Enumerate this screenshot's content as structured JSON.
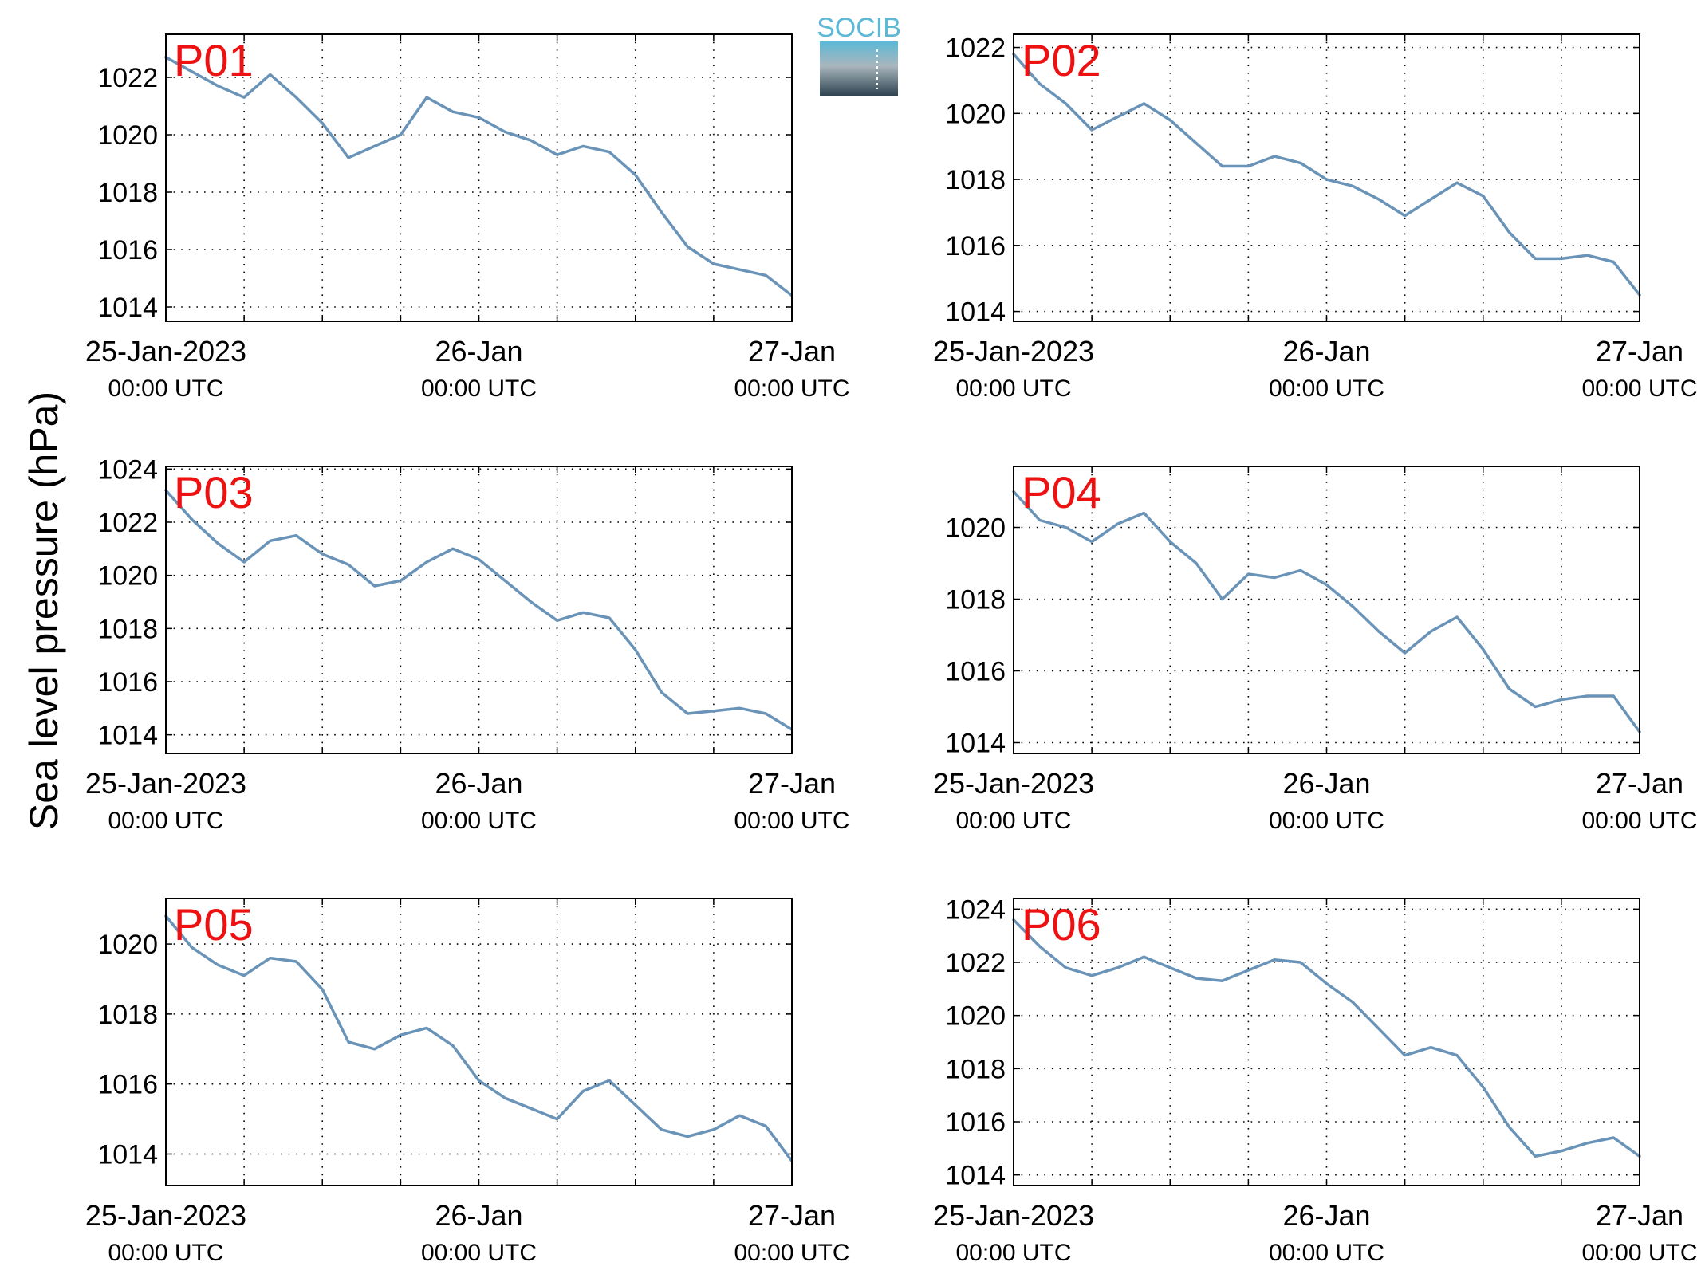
{
  "figure": {
    "ylabel": "Sea level pressure (hPa)",
    "logo_text": "SOCIB",
    "colors": {
      "line": "#6a93b8",
      "panel_label": "#ee1111",
      "axis": "#000000",
      "logo_top": "#5bb8d6",
      "logo_bottom": "#2e4450"
    }
  },
  "chart_data": [
    {
      "type": "line",
      "title": "P01",
      "x_range": [
        "2023-01-25 00:00",
        "2023-01-27 00:00"
      ],
      "x_ticks": [
        {
          "label": "25-Jan-2023",
          "sub": "00:00 UTC"
        },
        {
          "label": "26-Jan",
          "sub": "00:00 UTC"
        },
        {
          "label": "27-Jan",
          "sub": "00:00 UTC"
        }
      ],
      "ylim": [
        1013.5,
        1023.5
      ],
      "yticks": [
        1014,
        1016,
        1018,
        1020,
        1022
      ],
      "grid": "dotted",
      "hours": [
        0,
        2,
        4,
        6,
        8,
        10,
        12,
        14,
        16,
        18,
        20,
        22,
        24,
        26,
        28,
        30,
        32,
        34,
        36,
        38,
        40,
        42,
        44,
        46,
        48
      ],
      "values": [
        1022.7,
        1022.2,
        1021.7,
        1021.3,
        1022.1,
        1021.3,
        1020.4,
        1019.2,
        1019.6,
        1020.0,
        1021.3,
        1020.8,
        1020.6,
        1020.1,
        1019.8,
        1019.3,
        1019.6,
        1019.4,
        1018.6,
        1017.3,
        1016.1,
        1015.5,
        1015.3,
        1015.1,
        1014.4
      ]
    },
    {
      "type": "line",
      "title": "P02",
      "x_range": [
        "2023-01-25 00:00",
        "2023-01-27 00:00"
      ],
      "x_ticks": [
        {
          "label": "25-Jan-2023",
          "sub": "00:00 UTC"
        },
        {
          "label": "26-Jan",
          "sub": "00:00 UTC"
        },
        {
          "label": "27-Jan",
          "sub": "00:00 UTC"
        }
      ],
      "ylim": [
        1013.7,
        1022.4
      ],
      "yticks": [
        1014,
        1016,
        1018,
        1020,
        1022
      ],
      "grid": "dotted",
      "hours": [
        0,
        2,
        4,
        6,
        8,
        10,
        12,
        14,
        16,
        18,
        20,
        22,
        24,
        26,
        28,
        30,
        32,
        34,
        36,
        38,
        40,
        42,
        44,
        46,
        48
      ],
      "values": [
        1021.8,
        1020.9,
        1020.3,
        1019.5,
        1019.9,
        1020.3,
        1019.8,
        1019.1,
        1018.4,
        1018.4,
        1018.7,
        1018.5,
        1018.0,
        1017.8,
        1017.4,
        1016.9,
        1017.4,
        1017.9,
        1017.5,
        1016.4,
        1015.6,
        1015.6,
        1015.7,
        1015.5,
        1014.5
      ]
    },
    {
      "type": "line",
      "title": "P03",
      "x_range": [
        "2023-01-25 00:00",
        "2023-01-27 00:00"
      ],
      "x_ticks": [
        {
          "label": "25-Jan-2023",
          "sub": "00:00 UTC"
        },
        {
          "label": "26-Jan",
          "sub": "00:00 UTC"
        },
        {
          "label": "27-Jan",
          "sub": "00:00 UTC"
        }
      ],
      "ylim": [
        1013.3,
        1024.1
      ],
      "yticks": [
        1014,
        1016,
        1018,
        1020,
        1022,
        1024
      ],
      "grid": "dotted",
      "hours": [
        0,
        2,
        4,
        6,
        8,
        10,
        12,
        14,
        16,
        18,
        20,
        22,
        24,
        26,
        28,
        30,
        32,
        34,
        36,
        38,
        40,
        42,
        44,
        46,
        48
      ],
      "values": [
        1023.2,
        1022.1,
        1021.2,
        1020.5,
        1021.3,
        1021.5,
        1020.8,
        1020.4,
        1019.6,
        1019.8,
        1020.5,
        1021.0,
        1020.6,
        1019.8,
        1019.0,
        1018.3,
        1018.6,
        1018.4,
        1017.2,
        1015.6,
        1014.8,
        1014.9,
        1015.0,
        1014.8,
        1014.2
      ]
    },
    {
      "type": "line",
      "title": "P04",
      "x_range": [
        "2023-01-25 00:00",
        "2023-01-27 00:00"
      ],
      "x_ticks": [
        {
          "label": "25-Jan-2023",
          "sub": "00:00 UTC"
        },
        {
          "label": "26-Jan",
          "sub": "00:00 UTC"
        },
        {
          "label": "27-Jan",
          "sub": "00:00 UTC"
        }
      ],
      "ylim": [
        1013.7,
        1021.7
      ],
      "yticks": [
        1014,
        1016,
        1018,
        1020
      ],
      "grid": "dotted",
      "hours": [
        0,
        2,
        4,
        6,
        8,
        10,
        12,
        14,
        16,
        18,
        20,
        22,
        24,
        26,
        28,
        30,
        32,
        34,
        36,
        38,
        40,
        42,
        44,
        46,
        48
      ],
      "values": [
        1021.0,
        1020.2,
        1020.0,
        1019.6,
        1020.1,
        1020.4,
        1019.6,
        1019.0,
        1018.0,
        1018.7,
        1018.6,
        1018.8,
        1018.4,
        1017.8,
        1017.1,
        1016.5,
        1017.1,
        1017.5,
        1016.6,
        1015.5,
        1015.0,
        1015.2,
        1015.3,
        1015.3,
        1014.3
      ]
    },
    {
      "type": "line",
      "title": "P05",
      "x_range": [
        "2023-01-25 00:00",
        "2023-01-27 00:00"
      ],
      "x_ticks": [
        {
          "label": "25-Jan-2023",
          "sub": "00:00 UTC"
        },
        {
          "label": "26-Jan",
          "sub": "00:00 UTC"
        },
        {
          "label": "27-Jan",
          "sub": "00:00 UTC"
        }
      ],
      "ylim": [
        1013.1,
        1021.3
      ],
      "yticks": [
        1014,
        1016,
        1018,
        1020
      ],
      "grid": "dotted",
      "hours": [
        0,
        2,
        4,
        6,
        8,
        10,
        12,
        14,
        16,
        18,
        20,
        22,
        24,
        26,
        28,
        30,
        32,
        34,
        36,
        38,
        40,
        42,
        44,
        46,
        48
      ],
      "values": [
        1020.8,
        1019.9,
        1019.4,
        1019.1,
        1019.6,
        1019.5,
        1018.7,
        1017.2,
        1017.0,
        1017.4,
        1017.6,
        1017.1,
        1016.1,
        1015.6,
        1015.3,
        1015.0,
        1015.8,
        1016.1,
        1015.4,
        1014.7,
        1014.5,
        1014.7,
        1015.1,
        1014.8,
        1013.8
      ]
    },
    {
      "type": "line",
      "title": "P06",
      "x_range": [
        "2023-01-25 00:00",
        "2023-01-27 00:00"
      ],
      "x_ticks": [
        {
          "label": "25-Jan-2023",
          "sub": "00:00 UTC"
        },
        {
          "label": "26-Jan",
          "sub": "00:00 UTC"
        },
        {
          "label": "27-Jan",
          "sub": "00:00 UTC"
        }
      ],
      "ylim": [
        1013.6,
        1024.4
      ],
      "yticks": [
        1014,
        1016,
        1018,
        1020,
        1022,
        1024
      ],
      "grid": "dotted",
      "hours": [
        0,
        2,
        4,
        6,
        8,
        10,
        12,
        14,
        16,
        18,
        20,
        22,
        24,
        26,
        28,
        30,
        32,
        34,
        36,
        38,
        40,
        42,
        44,
        46,
        48
      ],
      "values": [
        1023.6,
        1022.6,
        1021.8,
        1021.5,
        1021.8,
        1022.2,
        1021.8,
        1021.4,
        1021.3,
        1021.7,
        1022.1,
        1022.0,
        1021.2,
        1020.5,
        1019.5,
        1018.5,
        1018.8,
        1018.5,
        1017.3,
        1015.8,
        1014.7,
        1014.9,
        1015.2,
        1015.4,
        1014.7
      ]
    }
  ]
}
